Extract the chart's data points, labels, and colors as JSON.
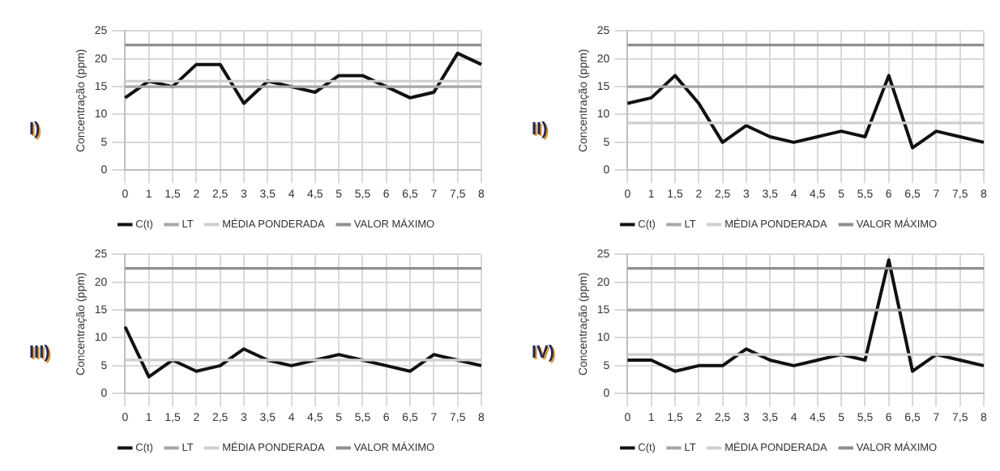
{
  "chart_data": [
    {
      "type": "line",
      "title": "I)",
      "ylabel": "Concentração (ppm)",
      "categories": [
        "0",
        "1",
        "1,5",
        "2",
        "2,5",
        "3",
        "3,5",
        "4",
        "4,5",
        "5",
        "5,5",
        "6",
        "6,5",
        "7",
        "7,5",
        "8"
      ],
      "ylim": [
        0,
        25
      ],
      "yticks": [
        0,
        5,
        10,
        15,
        20,
        25
      ],
      "grid": true,
      "legend": "bottom",
      "marker": "none",
      "series": [
        {
          "name": "C(t)",
          "color": "#111111",
          "values": [
            13,
            16,
            15,
            19,
            19,
            12,
            16,
            15,
            14,
            17,
            17,
            15,
            13,
            14,
            21,
            19
          ]
        },
        {
          "name": "LT",
          "color": "#a6a6a6",
          "values": [
            15,
            15,
            15,
            15,
            15,
            15,
            15,
            15,
            15,
            15,
            15,
            15,
            15,
            15,
            15,
            15
          ]
        },
        {
          "name": "MÉDIA PONDERADA",
          "color": "#cfcfcf",
          "values": [
            16,
            16,
            16,
            16,
            16,
            16,
            16,
            16,
            16,
            16,
            16,
            16,
            16,
            16,
            16,
            16
          ]
        },
        {
          "name": "VALOR MÁXIMO",
          "color": "#8f8f8f",
          "values": [
            22.5,
            22.5,
            22.5,
            22.5,
            22.5,
            22.5,
            22.5,
            22.5,
            22.5,
            22.5,
            22.5,
            22.5,
            22.5,
            22.5,
            22.5,
            22.5
          ]
        }
      ]
    },
    {
      "type": "line",
      "title": "II)",
      "ylabel": "Concentração (ppm)",
      "categories": [
        "0",
        "1",
        "1,5",
        "2",
        "2,5",
        "3",
        "3,5",
        "4",
        "4,5",
        "5",
        "5,5",
        "6",
        "6,5",
        "7",
        "7,5",
        "8"
      ],
      "ylim": [
        0,
        25
      ],
      "yticks": [
        0,
        5,
        10,
        15,
        20,
        25
      ],
      "grid": true,
      "legend": "bottom",
      "marker": "none",
      "series": [
        {
          "name": "C(t)",
          "color": "#111111",
          "values": [
            12,
            13,
            17,
            12,
            5,
            8,
            6,
            5,
            6,
            7,
            6,
            17,
            4,
            7,
            6,
            5
          ]
        },
        {
          "name": "LT",
          "color": "#a6a6a6",
          "values": [
            15,
            15,
            15,
            15,
            15,
            15,
            15,
            15,
            15,
            15,
            15,
            15,
            15,
            15,
            15,
            15
          ]
        },
        {
          "name": "MÉDIA PONDERADA",
          "color": "#cfcfcf",
          "values": [
            8.5,
            8.5,
            8.5,
            8.5,
            8.5,
            8.5,
            8.5,
            8.5,
            8.5,
            8.5,
            8.5,
            8.5,
            8.5,
            8.5,
            8.5,
            8.5
          ]
        },
        {
          "name": "VALOR MÁXIMO",
          "color": "#8f8f8f",
          "values": [
            22.5,
            22.5,
            22.5,
            22.5,
            22.5,
            22.5,
            22.5,
            22.5,
            22.5,
            22.5,
            22.5,
            22.5,
            22.5,
            22.5,
            22.5,
            22.5
          ]
        }
      ]
    },
    {
      "type": "line",
      "title": "III)",
      "ylabel": "Concentração (ppm)",
      "categories": [
        "0",
        "1",
        "1,5",
        "2",
        "2,5",
        "3",
        "3,5",
        "4",
        "4,5",
        "5",
        "5,5",
        "6",
        "6,5",
        "7",
        "7,5",
        "8"
      ],
      "ylim": [
        0,
        25
      ],
      "yticks": [
        0,
        5,
        10,
        15,
        20,
        25
      ],
      "grid": true,
      "legend": "bottom",
      "marker": "none",
      "series": [
        {
          "name": "C(t)",
          "color": "#111111",
          "values": [
            12,
            3,
            6,
            4,
            5,
            8,
            6,
            5,
            6,
            7,
            6,
            5,
            4,
            7,
            6,
            5
          ]
        },
        {
          "name": "LT",
          "color": "#a6a6a6",
          "values": [
            15,
            15,
            15,
            15,
            15,
            15,
            15,
            15,
            15,
            15,
            15,
            15,
            15,
            15,
            15,
            15
          ]
        },
        {
          "name": "MÉDIA PONDERADA",
          "color": "#cfcfcf",
          "values": [
            6,
            6,
            6,
            6,
            6,
            6,
            6,
            6,
            6,
            6,
            6,
            6,
            6,
            6,
            6,
            6
          ]
        },
        {
          "name": "VALOR MÁXIMO",
          "color": "#8f8f8f",
          "values": [
            22.5,
            22.5,
            22.5,
            22.5,
            22.5,
            22.5,
            22.5,
            22.5,
            22.5,
            22.5,
            22.5,
            22.5,
            22.5,
            22.5,
            22.5,
            22.5
          ]
        }
      ]
    },
    {
      "type": "line",
      "title": "IV)",
      "ylabel": "Concentração (ppm)",
      "categories": [
        "0",
        "1",
        "1,5",
        "2",
        "2,5",
        "3",
        "3,5",
        "4",
        "4,5",
        "5",
        "5,5",
        "6",
        "6,5",
        "7",
        "7,5",
        "8"
      ],
      "ylim": [
        0,
        25
      ],
      "yticks": [
        0,
        5,
        10,
        15,
        20,
        25
      ],
      "grid": true,
      "legend": "bottom",
      "marker": "none",
      "series": [
        {
          "name": "C(t)",
          "color": "#111111",
          "values": [
            6,
            6,
            4,
            5,
            5,
            8,
            6,
            5,
            6,
            7,
            6,
            24,
            4,
            7,
            6,
            5
          ]
        },
        {
          "name": "LT",
          "color": "#a6a6a6",
          "values": [
            15,
            15,
            15,
            15,
            15,
            15,
            15,
            15,
            15,
            15,
            15,
            15,
            15,
            15,
            15,
            15
          ]
        },
        {
          "name": "MÉDIA PONDERADA",
          "color": "#cfcfcf",
          "values": [
            7,
            7,
            7,
            7,
            7,
            7,
            7,
            7,
            7,
            7,
            7,
            7,
            7,
            7,
            7,
            7
          ]
        },
        {
          "name": "VALOR MÁXIMO",
          "color": "#8f8f8f",
          "values": [
            22.5,
            22.5,
            22.5,
            22.5,
            22.5,
            22.5,
            22.5,
            22.5,
            22.5,
            22.5,
            22.5,
            22.5,
            22.5,
            22.5,
            22.5,
            22.5
          ]
        }
      ]
    }
  ]
}
